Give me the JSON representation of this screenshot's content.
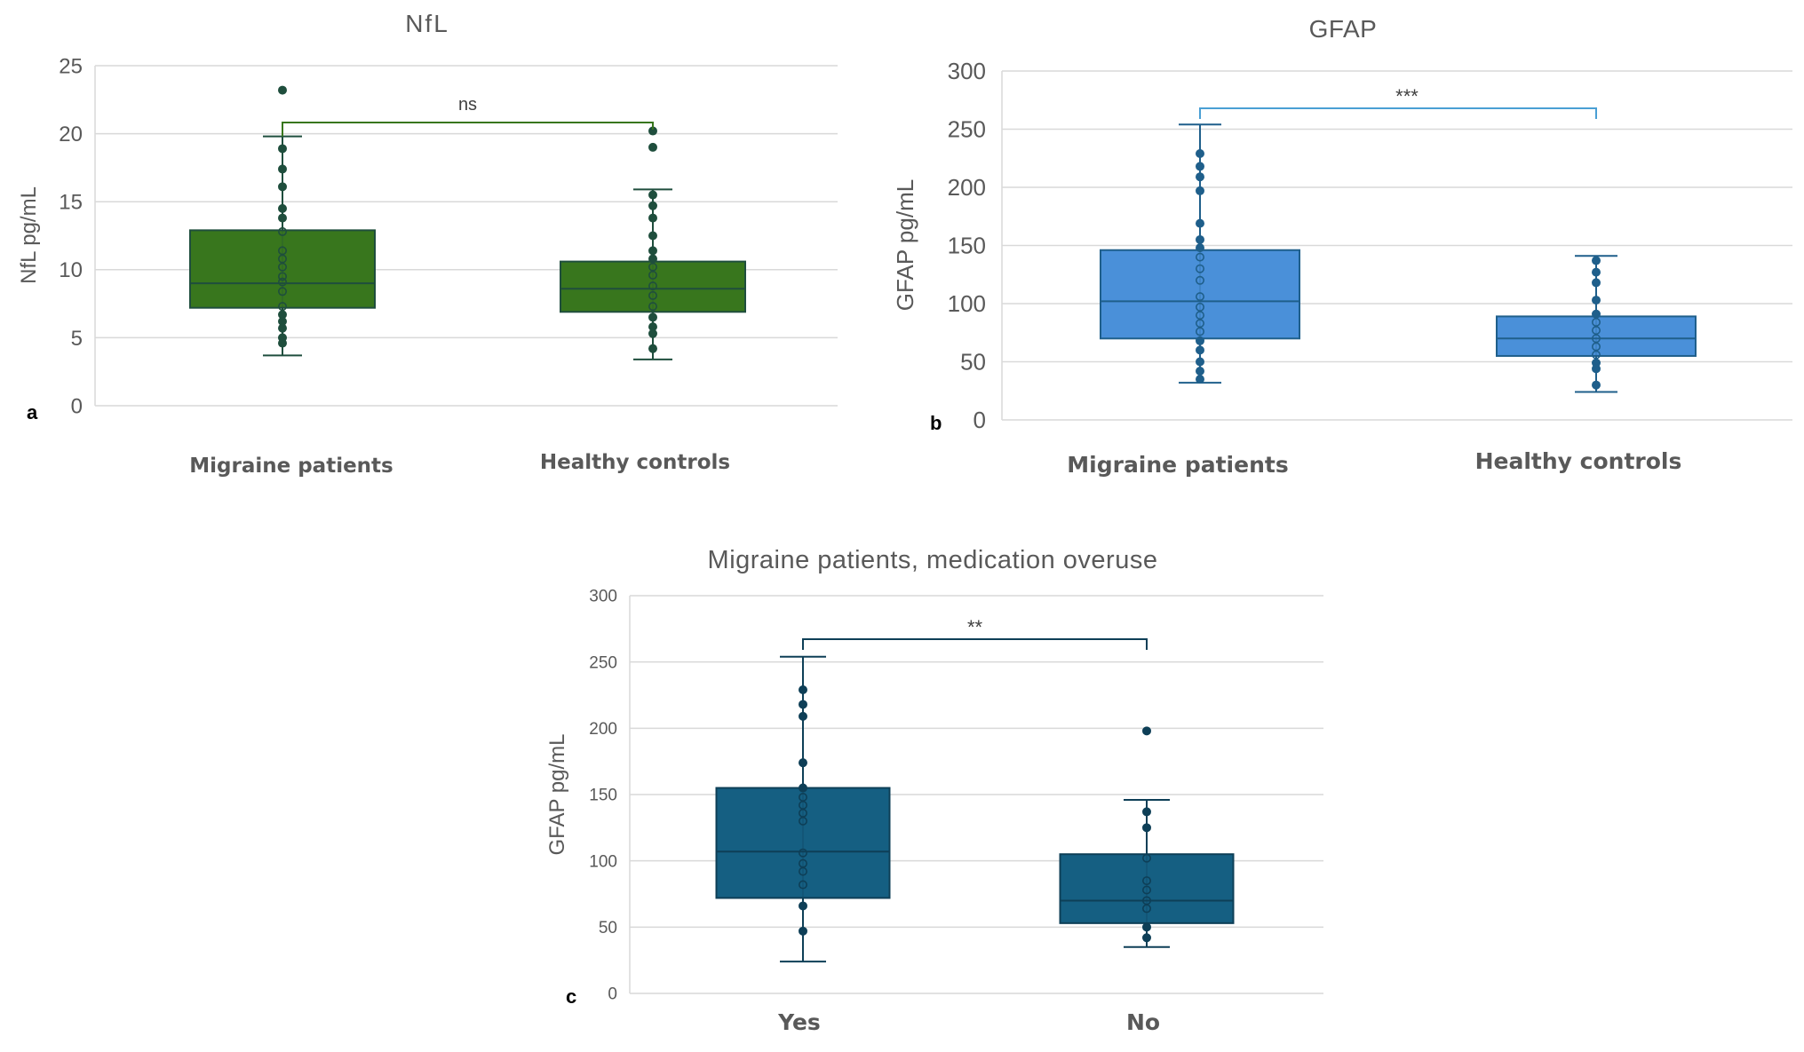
{
  "chart_data": [
    {
      "panel": "a",
      "type": "box",
      "title": "NfL",
      "ylabel": "NfL pg/mL",
      "ylim": [
        0,
        25
      ],
      "yticks": [
        0,
        5,
        10,
        15,
        20,
        25
      ],
      "color": "#38761d",
      "edge": "#1f4e3d",
      "significance": "ns",
      "categories": [
        "Migraine patients",
        "Healthy controls"
      ],
      "boxes": [
        {
          "min": 3.7,
          "q1": 7.2,
          "median": 9.0,
          "q3": 12.9,
          "max": 19.8,
          "points": [
            23.2,
            18.9,
            17.4,
            16.1,
            14.5,
            13.8,
            12.8,
            11.4,
            10.8,
            10.2,
            9.5,
            9.1,
            8.4,
            7.3,
            6.7,
            6.2,
            5.7,
            5.0,
            4.6
          ]
        },
        {
          "min": 3.4,
          "q1": 6.9,
          "median": 8.6,
          "q3": 10.6,
          "max": 15.9,
          "points": [
            20.2,
            19.0,
            15.5,
            14.7,
            13.8,
            12.5,
            11.4,
            10.8,
            10.2,
            9.6,
            8.8,
            8.1,
            7.3,
            6.5,
            5.8,
            5.3,
            4.2
          ]
        }
      ]
    },
    {
      "panel": "b",
      "type": "box",
      "title": "GFAP",
      "ylabel": "GFAP pg/mL",
      "ylim": [
        0,
        300
      ],
      "yticks": [
        0,
        50,
        100,
        150,
        200,
        250,
        300
      ],
      "color": "#4a90d9",
      "edge": "#1f5f8b",
      "significance": "***",
      "categories": [
        "Migraine patients",
        "Healthy controls"
      ],
      "boxes": [
        {
          "min": 32,
          "q1": 70,
          "median": 102,
          "q3": 146,
          "max": 254,
          "points": [
            229,
            218,
            209,
            197,
            169,
            155,
            148,
            140,
            130,
            120,
            106,
            97,
            90,
            83,
            76,
            68,
            60,
            50,
            42,
            35
          ]
        },
        {
          "min": 24,
          "q1": 55,
          "median": 70,
          "q3": 89,
          "max": 141,
          "points": [
            137,
            127,
            118,
            103,
            91,
            84,
            77,
            70,
            63,
            56,
            49,
            44,
            30
          ]
        }
      ]
    },
    {
      "panel": "c",
      "type": "box",
      "title": "Migraine patients, medication overuse",
      "ylabel": "GFAP pg/mL",
      "ylim": [
        0,
        300
      ],
      "yticks": [
        0,
        50,
        100,
        150,
        200,
        250,
        300
      ],
      "color": "#155f82",
      "edge": "#0e3f57",
      "significance": "**",
      "categories": [
        "Yes",
        "No"
      ],
      "boxes": [
        {
          "min": 24,
          "q1": 72,
          "median": 107,
          "q3": 155,
          "max": 254,
          "points": [
            229,
            218,
            209,
            174,
            155,
            148,
            142,
            136,
            130,
            106,
            98,
            92,
            82,
            66,
            47
          ]
        },
        {
          "min": 35,
          "q1": 53,
          "median": 70,
          "q3": 105,
          "max": 146,
          "points": [
            198,
            137,
            125,
            102,
            85,
            78,
            70,
            64,
            50,
            42
          ]
        }
      ]
    }
  ]
}
